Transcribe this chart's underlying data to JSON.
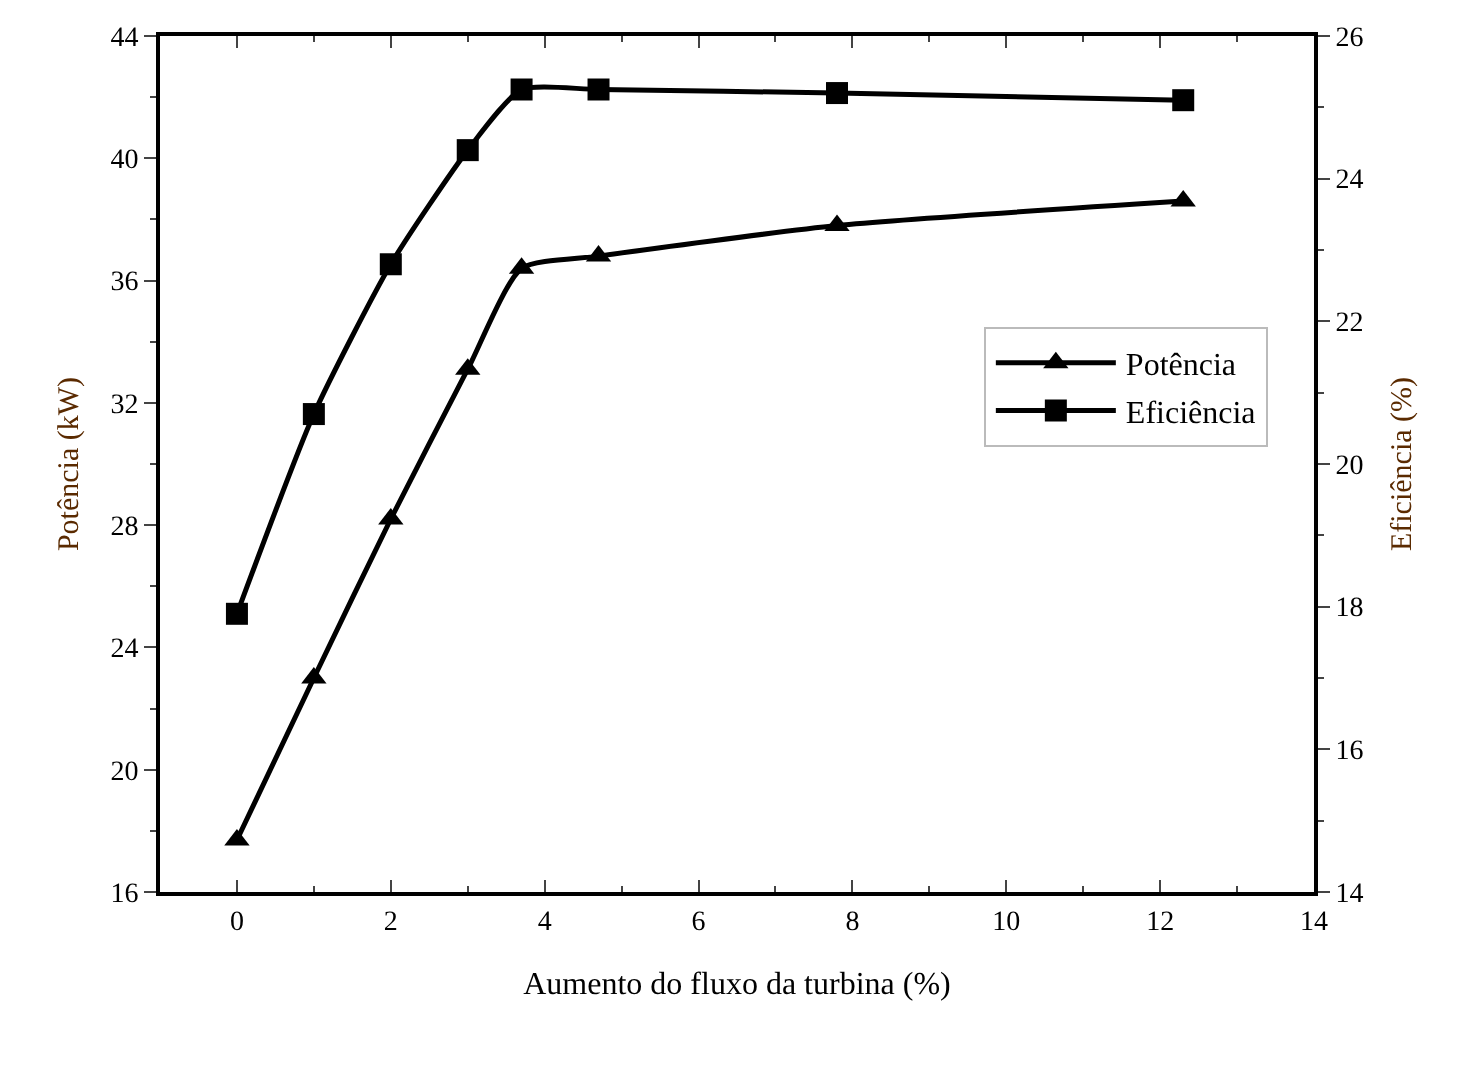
{
  "chart_data": {
    "type": "line",
    "xlabel": "Aumento do fluxo da turbina (%)",
    "ylabel": "Potência (kW)",
    "y2label": "Eficiência (%)",
    "x": [
      0,
      1,
      2,
      3,
      3.7,
      4.7,
      7.8,
      12.3
    ],
    "series": [
      {
        "name": "Potência",
        "color": "#000000",
        "marker": "triangle",
        "values": [
          17.7,
          23.0,
          28.2,
          33.1,
          36.4,
          36.8,
          37.8,
          38.6
        ]
      },
      {
        "name": "Eficiência",
        "color": "#000000",
        "marker": "square",
        "axis": "y2",
        "values": [
          17.9,
          20.7,
          22.8,
          24.4,
          25.25,
          25.25,
          25.2,
          25.1
        ]
      }
    ],
    "xlim": [
      -1,
      14
    ],
    "xticks": [
      0,
      2,
      4,
      6,
      8,
      10,
      12,
      14
    ],
    "ylim": [
      16,
      44
    ],
    "yticks": [
      16,
      20,
      24,
      28,
      32,
      36,
      40,
      44
    ],
    "y2lim": [
      14,
      26
    ],
    "y2ticks": [
      14,
      16,
      18,
      20,
      22,
      24,
      26
    ],
    "grid": false,
    "legend": "center right",
    "line_style": "solid"
  }
}
